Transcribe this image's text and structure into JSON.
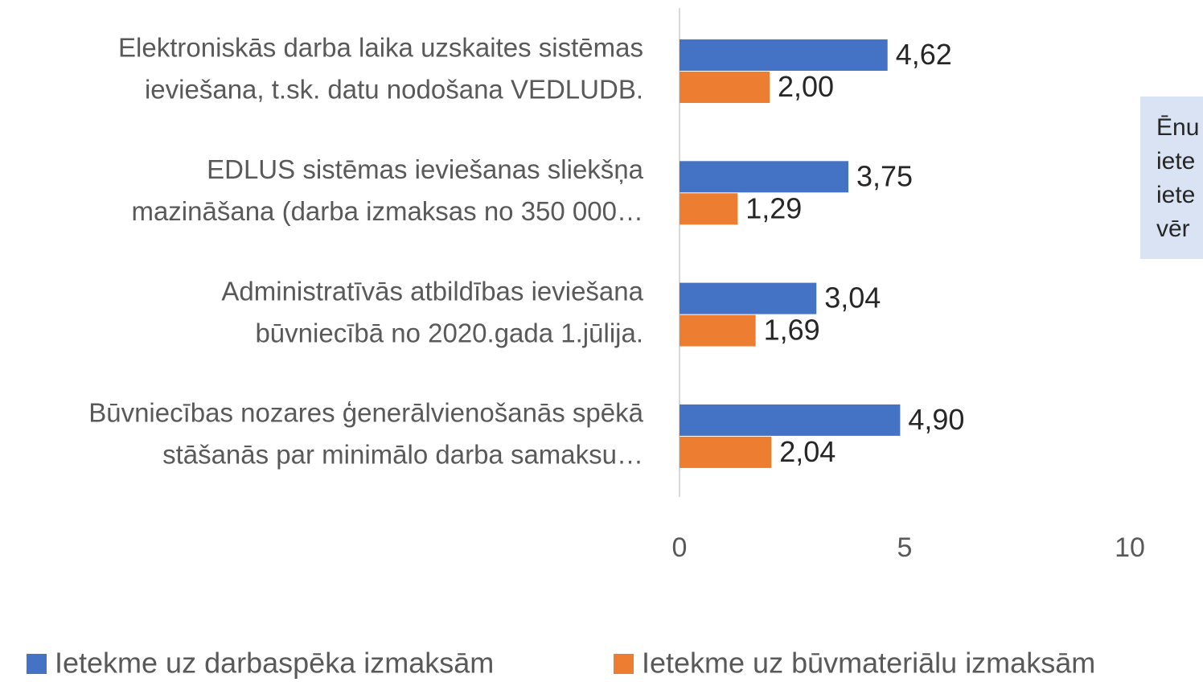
{
  "chart_data": {
    "type": "hbar",
    "categories": [
      [
        "Elektroniskās darba laika uzskaites sistēmas",
        "ieviešana, t.sk. datu nodošana VEDLUDB."
      ],
      [
        "EDLUS sistēmas ieviešanas sliekšņa",
        "mazināšana (darba izmaksas no 350 000…"
      ],
      [
        "Administratīvās atbildības ieviešana",
        "būvniecībā no 2020.gada 1.jūlija."
      ],
      [
        "Būvniecības nozares ģenerālvienošanās spēkā",
        "stāšanās par minimālo darba samaksu…"
      ]
    ],
    "series": [
      {
        "name": "Ietekme uz darbaspēka izmaksām",
        "color": "#4472c4",
        "values": [
          4.62,
          3.75,
          3.04,
          4.9
        ],
        "value_labels": [
          "4,62",
          "3,75",
          "3,04",
          "4,90"
        ]
      },
      {
        "name": "Ietekme uz būvmateriālu izmaksām",
        "color": "#ed7d31",
        "values": [
          2.0,
          1.29,
          1.69,
          2.04
        ],
        "value_labels": [
          "2,00",
          "1,29",
          "1,69",
          "2,04"
        ]
      }
    ],
    "xlim": [
      0,
      10
    ],
    "xticks": [
      0,
      5,
      10
    ],
    "annotation": [
      "Ēnu",
      "iete",
      "iete",
      "vēr"
    ]
  }
}
